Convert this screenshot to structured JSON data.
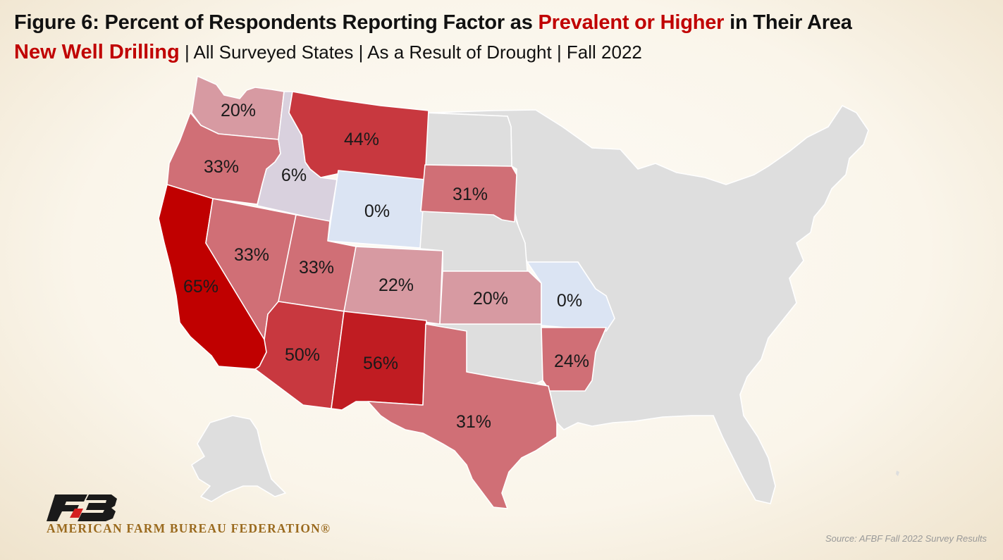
{
  "header": {
    "title_prefix": "Figure 6: Percent of Respondents Reporting Factor as ",
    "title_highlight": "Prevalent or Higher",
    "title_suffix": " in Their Area",
    "subtitle_topic": "New Well Drilling",
    "subtitle_rest": " | All Surveyed States | As a Result of Drought | Fall 2022"
  },
  "colors": {
    "highlight_red": "#c00000",
    "not_surveyed": "#dedede",
    "zero_value": "#dbe4f3",
    "low_value": "#d9d1de",
    "scale_light": "#d79aa2",
    "scale_mid": "#d06f76",
    "scale_high": "#c8383f",
    "scale_max": "#c00000"
  },
  "map": {
    "states": [
      {
        "id": "WA",
        "label": "20%",
        "value": 20
      },
      {
        "id": "OR",
        "label": "33%",
        "value": 33
      },
      {
        "id": "CA",
        "label": "65%",
        "value": 65
      },
      {
        "id": "ID",
        "label": "6%",
        "value": 6
      },
      {
        "id": "MT",
        "label": "44%",
        "value": 44
      },
      {
        "id": "WY",
        "label": "0%",
        "value": 0
      },
      {
        "id": "SD",
        "label": "31%",
        "value": 31
      },
      {
        "id": "NV",
        "label": "33%",
        "value": 33
      },
      {
        "id": "UT",
        "label": "33%",
        "value": 33
      },
      {
        "id": "CO",
        "label": "22%",
        "value": 22
      },
      {
        "id": "KS",
        "label": "20%",
        "value": 20
      },
      {
        "id": "MO",
        "label": "0%",
        "value": 0
      },
      {
        "id": "AZ",
        "label": "50%",
        "value": 50
      },
      {
        "id": "NM",
        "label": "56%",
        "value": 56
      },
      {
        "id": "AR",
        "label": "24%",
        "value": 24
      },
      {
        "id": "TX",
        "label": "31%",
        "value": 31
      }
    ]
  },
  "logo": {
    "text": "AMERICAN FARM BUREAU FEDERATION®"
  },
  "source": "Source: AFBF Fall 2022 Survey Results"
}
